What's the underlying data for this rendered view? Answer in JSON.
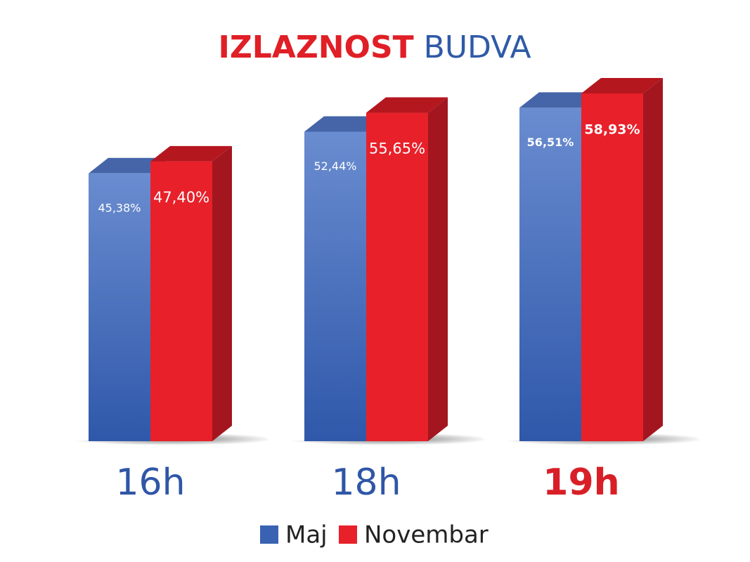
{
  "chart_data": {
    "type": "bar3d",
    "title": [
      "IZLAZNOST",
      "BUDVA"
    ],
    "categories": [
      "16h",
      "18h",
      "19h"
    ],
    "series": [
      {
        "name": "Maj",
        "color": "#3a62b2",
        "values": [
          45.38,
          52.44,
          56.51
        ],
        "value_labels": [
          "45,38%",
          "52,44%",
          "56,51%"
        ]
      },
      {
        "name": "Novembar",
        "color": "#e8202a",
        "values": [
          47.4,
          55.65,
          58.93
        ],
        "value_labels": [
          "47,40%",
          "55,65%",
          "58,93%"
        ]
      }
    ]
  }
}
